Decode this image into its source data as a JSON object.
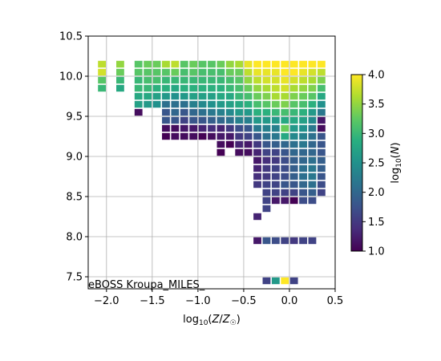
{
  "chart_data": {
    "type": "heatmap",
    "title": "",
    "xlabel": "log10(Z/Z☉)",
    "ylabel": "",
    "annotation": "eBOSS Kroupa_MILES_",
    "xlim": [
      -2.2,
      0.5
    ],
    "ylim": [
      7.35,
      10.5
    ],
    "grid": true,
    "xticks": [
      -2.0,
      -1.5,
      -1.0,
      -0.5,
      0.0,
      0.5
    ],
    "xtick_labels": [
      "−2.0",
      "−1.5",
      "−1.0",
      "−0.5",
      "0.0",
      "0.5"
    ],
    "yticks": [
      7.5,
      8.0,
      8.5,
      9.0,
      9.5,
      10.0,
      10.5
    ],
    "ytick_labels": [
      "7.5",
      "8.0",
      "8.5",
      "9.0",
      "9.5",
      "10.0",
      "10.5"
    ],
    "colorbar": {
      "label": "log10(N)",
      "colormap": "viridis",
      "range": [
        1.0,
        4.0
      ],
      "ticks": [
        1.0,
        1.5,
        2.0,
        2.5,
        3.0,
        3.5,
        4.0
      ],
      "tick_labels": [
        "1.0",
        "1.5",
        "2.0",
        "2.5",
        "3.0",
        "3.5",
        "4.0"
      ]
    },
    "bin_width_x": 0.1,
    "bin_height_y": 0.1,
    "z_unit": "log10(N)",
    "columns": [
      {
        "x": -2.05,
        "y_top": 10.15,
        "values": [
          3.7,
          3.8,
          3.2,
          3.0
        ]
      },
      {
        "x": -1.85,
        "y_top": 10.15,
        "values": [
          3.5,
          3.3,
          3.0,
          2.8
        ]
      },
      {
        "x": -1.65,
        "y_top": 10.15,
        "values": [
          3.2,
          3.2,
          3.0,
          3.0,
          2.8,
          2.7,
          1.1
        ]
      },
      {
        "x": -1.55,
        "y_top": 10.15,
        "values": [
          3.3,
          3.2,
          3.1,
          3.0,
          2.8,
          2.6
        ]
      },
      {
        "x": -1.45,
        "y_top": 10.15,
        "values": [
          3.3,
          3.2,
          3.1,
          2.9,
          2.7,
          2.5
        ]
      },
      {
        "x": -1.35,
        "y_top": 10.15,
        "values": [
          3.6,
          3.2,
          3.0,
          2.9,
          2.6,
          2.1,
          1.8,
          1.8,
          1.1,
          1.0
        ]
      },
      {
        "x": -1.25,
        "y_top": 10.15,
        "values": [
          3.7,
          3.3,
          3.0,
          2.8,
          2.5,
          2.1,
          2.0,
          1.8,
          1.1,
          1.1
        ]
      },
      {
        "x": -1.15,
        "y_top": 10.15,
        "values": [
          3.2,
          3.1,
          3.0,
          2.9,
          2.6,
          2.1,
          1.8,
          1.6,
          1.2,
          1.1
        ]
      },
      {
        "x": -1.05,
        "y_top": 10.15,
        "values": [
          3.3,
          3.2,
          3.0,
          2.9,
          2.7,
          2.3,
          2.0,
          1.8,
          1.2,
          1.1
        ]
      },
      {
        "x": -0.95,
        "y_top": 10.15,
        "values": [
          3.2,
          3.1,
          3.0,
          2.9,
          2.7,
          2.4,
          2.1,
          1.8,
          1.3,
          1.0
        ]
      },
      {
        "x": -0.85,
        "y_top": 10.15,
        "values": [
          3.2,
          3.1,
          3.0,
          2.9,
          2.7,
          2.5,
          2.2,
          1.9,
          1.4,
          1.1
        ]
      },
      {
        "x": -0.75,
        "y_top": 10.15,
        "values": [
          3.3,
          3.1,
          3.0,
          2.9,
          2.8,
          2.6,
          2.3,
          2.0,
          1.3,
          1.2,
          1.1,
          1.0
        ]
      },
      {
        "x": -0.65,
        "y_top": 10.15,
        "values": [
          3.5,
          3.3,
          3.1,
          3.0,
          2.8,
          2.7,
          2.4,
          2.1,
          1.5,
          1.2,
          1.0
        ]
      },
      {
        "x": -0.55,
        "y_top": 10.15,
        "values": [
          3.6,
          3.3,
          3.2,
          3.1,
          3.0,
          2.8,
          2.6,
          2.3,
          1.7,
          1.5,
          1.3,
          1.1
        ]
      },
      {
        "x": -0.45,
        "y_top": 10.15,
        "values": [
          3.9,
          3.7,
          3.5,
          3.3,
          3.1,
          2.9,
          2.6,
          2.3,
          1.8,
          1.6,
          1.2,
          1.1
        ]
      },
      {
        "x": -0.35,
        "y_top": 10.15,
        "values": [
          4.0,
          3.9,
          3.7,
          3.5,
          3.3,
          3.1,
          2.9,
          2.6,
          2.2,
          1.8,
          1.5,
          1.3,
          1.2,
          1.3,
          1.4,
          1.5
        ]
      },
      {
        "x": -0.25,
        "y_top": 10.15,
        "values": [
          4.0,
          3.9,
          3.8,
          3.6,
          3.4,
          3.2,
          2.9,
          2.6,
          2.3,
          2.1,
          1.8,
          1.6,
          1.4,
          1.5,
          1.5,
          1.6,
          1.6,
          1.6,
          1.6
        ]
      },
      {
        "x": -0.15,
        "y_top": 10.15,
        "values": [
          4.0,
          3.9,
          3.8,
          3.7,
          3.6,
          3.3,
          3.0,
          2.6,
          2.3,
          2.2,
          1.9,
          1.6,
          1.5,
          1.6,
          1.6,
          1.6,
          1.6,
          1.2
        ]
      },
      {
        "x": -0.05,
        "y_top": 10.15,
        "values": [
          4.0,
          4.0,
          3.9,
          3.8,
          3.6,
          3.4,
          3.1,
          2.8,
          3.3,
          2.8,
          2.0,
          1.8,
          1.7,
          1.7,
          1.7,
          1.8,
          1.6,
          1.2
        ]
      },
      {
        "x": 0.05,
        "y_top": 10.15,
        "values": [
          4.0,
          4.0,
          3.8,
          3.6,
          3.4,
          3.2,
          3.0,
          2.8,
          2.6,
          2.4,
          2.1,
          2.0,
          1.9,
          1.9,
          1.9,
          1.8,
          1.6,
          1.0
        ]
      },
      {
        "x": 0.15,
        "y_top": 10.15,
        "values": [
          4.0,
          3.9,
          3.7,
          3.5,
          3.3,
          3.1,
          2.9,
          2.7,
          2.5,
          2.3,
          2.2,
          2.0,
          2.0,
          2.1,
          2.1,
          2.0,
          1.8,
          1.7
        ]
      },
      {
        "x": 0.25,
        "y_top": 10.15,
        "values": [
          4.0,
          3.8,
          3.6,
          3.4,
          3.2,
          2.9,
          2.6,
          2.4,
          2.2,
          2.1,
          2.0,
          2.0,
          2.1,
          2.2,
          2.2,
          2.1,
          1.9,
          1.7
        ]
      },
      {
        "x": 0.35,
        "y_top": 10.15,
        "values": [
          4.0,
          3.7,
          3.4,
          3.1,
          2.8,
          2.5,
          2.2,
          1.2,
          1.1,
          1.8,
          1.8,
          1.8,
          1.9,
          1.9,
          1.8,
          1.7,
          1.6
        ]
      }
    ],
    "extra_cells": [
      {
        "x": -0.35,
        "y": 8.25,
        "value": 1.3
      },
      {
        "x": -0.35,
        "y": 7.95,
        "value": 1.2
      },
      {
        "x": -0.25,
        "y": 7.95,
        "value": 1.8
      },
      {
        "x": -0.15,
        "y": 7.95,
        "value": 1.7
      },
      {
        "x": -0.05,
        "y": 7.95,
        "value": 1.6
      },
      {
        "x": 0.05,
        "y": 7.95,
        "value": 1.5
      },
      {
        "x": 0.15,
        "y": 7.95,
        "value": 1.6
      },
      {
        "x": 0.25,
        "y": 7.95,
        "value": 1.6
      },
      {
        "x": -0.25,
        "y": 7.45,
        "value": 1.6
      },
      {
        "x": -0.15,
        "y": 7.45,
        "value": 2.6
      },
      {
        "x": -0.05,
        "y": 7.45,
        "value": 4.0
      },
      {
        "x": 0.05,
        "y": 7.45,
        "value": 1.6
      }
    ]
  }
}
